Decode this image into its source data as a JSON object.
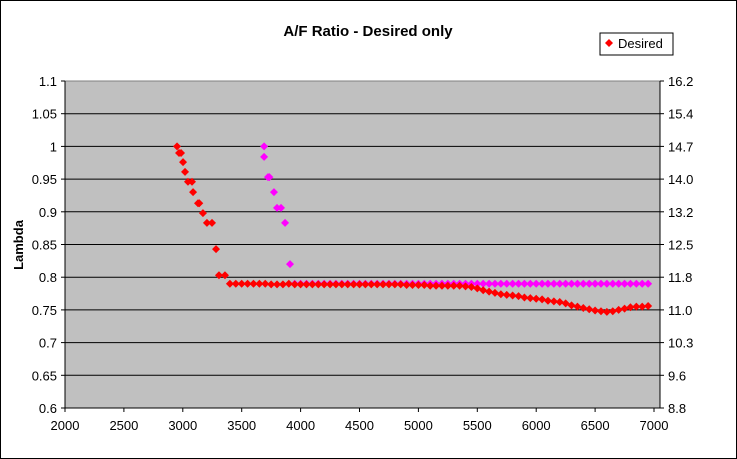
{
  "chart_data": {
    "type": "scatter",
    "title": "A/F Ratio - Desired only",
    "xlabel": "",
    "ylabel": "Lambda",
    "xlim": [
      2000,
      7000
    ],
    "ylim": [
      0.6,
      1.1
    ],
    "x_ticks": [
      "2000",
      "2500",
      "3000",
      "3500",
      "4000",
      "4500",
      "5000",
      "5500",
      "6000",
      "6500",
      "7000"
    ],
    "y_ticks": [
      "0.6",
      "0.65",
      "0.7",
      "0.75",
      "0.8",
      "0.85",
      "0.9",
      "0.95",
      "1",
      "1.05",
      "1.1"
    ],
    "y2_ticks": [
      "8.8",
      "9.6",
      "10.3",
      "11.0",
      "11.8",
      "12.5",
      "13.2",
      "14.0",
      "14.7",
      "15.4",
      "16.2"
    ],
    "grid": "horizontal",
    "legend": {
      "position": "top-right",
      "entries": [
        "Desired"
      ]
    },
    "series": [
      {
        "name": "Desired",
        "color": "#FF0000",
        "marker": "diamond",
        "x": [
          2951,
          2968,
          2985,
          3002,
          3019,
          3044,
          3078,
          3087,
          3129,
          3140,
          3171,
          3205,
          3248,
          3282,
          3307,
          3358,
          3400,
          3450,
          3500,
          3550,
          3600,
          3650,
          3700,
          3750,
          3800,
          3850,
          3900,
          3950,
          4000,
          4050,
          4100,
          4150,
          4200,
          4250,
          4300,
          4350,
          4400,
          4450,
          4500,
          4550,
          4600,
          4650,
          4700,
          4750,
          4800,
          4850,
          4900,
          4950,
          5000,
          5050,
          5100,
          5150,
          5200,
          5250,
          5300,
          5350,
          5400,
          5450,
          5500,
          5550,
          5600,
          5650,
          5700,
          5750,
          5800,
          5850,
          5900,
          5950,
          6000,
          6050,
          6100,
          6150,
          6200,
          6250,
          6300,
          6350,
          6400,
          6450,
          6500,
          6550,
          6600,
          6650,
          6700,
          6750,
          6800,
          6850,
          6900,
          6950
        ],
        "y": [
          1.0,
          0.99,
          0.99,
          0.976,
          0.961,
          0.946,
          0.946,
          0.93,
          0.913,
          0.913,
          0.898,
          0.883,
          0.883,
          0.843,
          0.803,
          0.803,
          0.79,
          0.79,
          0.79,
          0.79,
          0.79,
          0.79,
          0.79,
          0.789,
          0.789,
          0.789,
          0.79,
          0.789,
          0.789,
          0.789,
          0.789,
          0.789,
          0.789,
          0.789,
          0.789,
          0.789,
          0.789,
          0.789,
          0.789,
          0.789,
          0.789,
          0.789,
          0.789,
          0.789,
          0.789,
          0.789,
          0.788,
          0.788,
          0.788,
          0.788,
          0.787,
          0.787,
          0.787,
          0.787,
          0.787,
          0.787,
          0.786,
          0.785,
          0.783,
          0.78,
          0.778,
          0.776,
          0.774,
          0.773,
          0.772,
          0.771,
          0.769,
          0.768,
          0.767,
          0.766,
          0.764,
          0.763,
          0.762,
          0.76,
          0.757,
          0.755,
          0.753,
          0.751,
          0.749,
          0.748,
          0.747,
          0.748,
          0.75,
          0.752,
          0.754,
          0.755,
          0.755,
          0.756
        ]
      },
      {
        "name": "",
        "color": "#FF00FF",
        "marker": "diamond",
        "x": [
          3690,
          3690,
          3723,
          3735,
          3774,
          3800,
          3834,
          3868,
          3910,
          3950,
          4000,
          4050,
          4100,
          4150,
          4200,
          4250,
          4300,
          4350,
          4400,
          4450,
          4500,
          4550,
          4600,
          4650,
          4700,
          4750,
          4800,
          4850,
          4900,
          4950,
          5000,
          5050,
          5100,
          5150,
          5200,
          5250,
          5300,
          5350,
          5400,
          5450,
          5500,
          5550,
          5600,
          5650,
          5700,
          5750,
          5800,
          5850,
          5900,
          5950,
          6000,
          6050,
          6100,
          6150,
          6200,
          6250,
          6300,
          6350,
          6400,
          6450,
          6500,
          6550,
          6600,
          6650,
          6700,
          6750,
          6800,
          6850,
          6900,
          6950
        ],
        "y": [
          1.0,
          0.984,
          0.953,
          0.953,
          0.93,
          0.906,
          0.906,
          0.883,
          0.82,
          0.79,
          0.79,
          0.79,
          0.79,
          0.79,
          0.79,
          0.79,
          0.79,
          0.79,
          0.79,
          0.79,
          0.79,
          0.79,
          0.79,
          0.79,
          0.79,
          0.79,
          0.79,
          0.79,
          0.79,
          0.79,
          0.79,
          0.79,
          0.79,
          0.79,
          0.79,
          0.79,
          0.79,
          0.79,
          0.79,
          0.79,
          0.79,
          0.79,
          0.79,
          0.79,
          0.79,
          0.79,
          0.79,
          0.79,
          0.79,
          0.79,
          0.79,
          0.79,
          0.79,
          0.79,
          0.79,
          0.79,
          0.79,
          0.79,
          0.79,
          0.79,
          0.79,
          0.79,
          0.79,
          0.79,
          0.79,
          0.79,
          0.79,
          0.79,
          0.79,
          0.79
        ]
      }
    ]
  }
}
